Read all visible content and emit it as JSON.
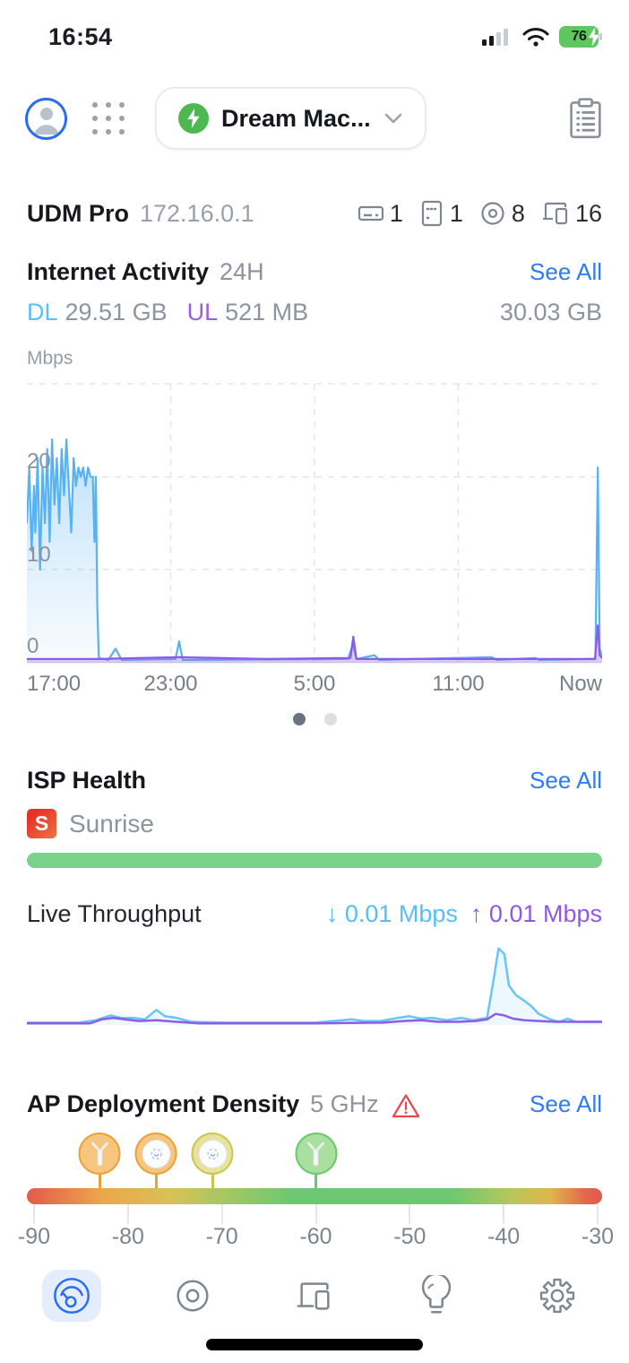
{
  "status_bar": {
    "time": "16:54",
    "battery_level": "76"
  },
  "header": {
    "site_name": "Dream Mac..."
  },
  "console": {
    "name": "UDM Pro",
    "ip": "172.16.0.1",
    "counts": [
      {
        "icon": "gateway-icon",
        "value": "1"
      },
      {
        "icon": "switch-icon",
        "value": "1"
      },
      {
        "icon": "access-point-icon",
        "value": "8"
      },
      {
        "icon": "clients-icon",
        "value": "16"
      }
    ]
  },
  "internet_activity": {
    "title": "Internet Activity",
    "period": "24H",
    "see_all": "See All",
    "dl_label": "DL",
    "dl_value": "29.51 GB",
    "ul_label": "UL",
    "ul_value": "521 MB",
    "total_value": "30.03 GB",
    "axis_unit": "Mbps",
    "y_tick_labels": [
      "20",
      "10",
      "0"
    ],
    "x_tick_labels": [
      "17:00",
      "23:00",
      "5:00",
      "11:00",
      "Now"
    ]
  },
  "isp_health": {
    "title": "ISP Health",
    "see_all": "See All",
    "provider_initial": "S",
    "provider_name": "Sunrise"
  },
  "live_throughput": {
    "title": "Live Throughput",
    "down_arrow": "↓",
    "down_value": "0.01 Mbps",
    "up_arrow": "↑",
    "up_value": "0.01 Mbps"
  },
  "ap_density": {
    "title": "AP Deployment Density",
    "band": "5 GHz",
    "see_all": "See All",
    "scale_labels": [
      "-90",
      "-80",
      "-70",
      "-60",
      "-50",
      "-40",
      "-30"
    ]
  },
  "chart_data": [
    {
      "id": "internet-activity-24h",
      "type": "area",
      "title": "Internet Activity 24H",
      "ylabel": "Mbps",
      "ylim": [
        0,
        30
      ],
      "y_ticks": [
        0,
        10,
        20
      ],
      "x_ticks": [
        "17:00",
        "23:00",
        "5:00",
        "11:00",
        "Now"
      ],
      "x_range_hours": [
        0,
        24
      ],
      "grid": "dashed",
      "legend": "none",
      "series": [
        {
          "name": "Download",
          "color": "#58b2f2",
          "points": [
            [
              0,
              15
            ],
            [
              0.1,
              21
            ],
            [
              0.2,
              12
            ],
            [
              0.3,
              19
            ],
            [
              0.35,
              14
            ],
            [
              0.45,
              22
            ],
            [
              0.55,
              10
            ],
            [
              0.65,
              21
            ],
            [
              0.75,
              15
            ],
            [
              0.85,
              23
            ],
            [
              0.95,
              13
            ],
            [
              1.05,
              24
            ],
            [
              1.15,
              17
            ],
            [
              1.25,
              22
            ],
            [
              1.35,
              15
            ],
            [
              1.45,
              23
            ],
            [
              1.55,
              18
            ],
            [
              1.65,
              24
            ],
            [
              1.75,
              19
            ],
            [
              1.85,
              14
            ],
            [
              1.95,
              22
            ],
            [
              2.05,
              19
            ],
            [
              2.15,
              21
            ],
            [
              2.25,
              20
            ],
            [
              2.35,
              21
            ],
            [
              2.45,
              19
            ],
            [
              2.55,
              21
            ],
            [
              2.65,
              20
            ],
            [
              2.75,
              20
            ],
            [
              2.82,
              13
            ],
            [
              2.88,
              20
            ],
            [
              2.94,
              6
            ],
            [
              3.0,
              0.5
            ],
            [
              3.4,
              0.3
            ],
            [
              3.7,
              1.5
            ],
            [
              3.95,
              0.3
            ],
            [
              6.2,
              0.4
            ],
            [
              6.35,
              2.3
            ],
            [
              6.5,
              0.3
            ],
            [
              13.4,
              0.4
            ],
            [
              13.6,
              2.0
            ],
            [
              13.75,
              0.4
            ],
            [
              14.5,
              0.8
            ],
            [
              14.7,
              0.3
            ],
            [
              19.4,
              0.6
            ],
            [
              19.6,
              0.3
            ],
            [
              21.2,
              0.5
            ],
            [
              21.4,
              0.3
            ],
            [
              23.5,
              0.4
            ],
            [
              23.72,
              0.4
            ],
            [
              23.82,
              21
            ],
            [
              23.9,
              1.5
            ],
            [
              24,
              0.6
            ]
          ]
        },
        {
          "name": "Upload",
          "color": "#8e59e8",
          "points": [
            [
              0,
              0.4
            ],
            [
              3,
              0.4
            ],
            [
              6.3,
              0.6
            ],
            [
              10,
              0.4
            ],
            [
              13.5,
              0.5
            ],
            [
              13.62,
              2.8
            ],
            [
              13.75,
              0.4
            ],
            [
              19.5,
              0.4
            ],
            [
              23.7,
              0.4
            ],
            [
              23.82,
              4
            ],
            [
              23.9,
              0.8
            ],
            [
              24,
              0.5
            ]
          ]
        }
      ]
    },
    {
      "id": "live-throughput",
      "type": "line",
      "ylim": [
        0,
        100
      ],
      "x_range": [
        0,
        1
      ],
      "grid": "off",
      "series": [
        {
          "name": "Download",
          "color": "#67c6f5",
          "points": [
            [
              0,
              3
            ],
            [
              0.09,
              3
            ],
            [
              0.12,
              6
            ],
            [
              0.145,
              12
            ],
            [
              0.165,
              9
            ],
            [
              0.185,
              9
            ],
            [
              0.205,
              7
            ],
            [
              0.225,
              19
            ],
            [
              0.24,
              11
            ],
            [
              0.26,
              9
            ],
            [
              0.285,
              4
            ],
            [
              0.35,
              3
            ],
            [
              0.5,
              3
            ],
            [
              0.565,
              7
            ],
            [
              0.585,
              5
            ],
            [
              0.615,
              5
            ],
            [
              0.645,
              9
            ],
            [
              0.665,
              11
            ],
            [
              0.685,
              8
            ],
            [
              0.705,
              9
            ],
            [
              0.73,
              6
            ],
            [
              0.755,
              9
            ],
            [
              0.775,
              6
            ],
            [
              0.8,
              9
            ],
            [
              0.812,
              60
            ],
            [
              0.82,
              97
            ],
            [
              0.83,
              90
            ],
            [
              0.838,
              50
            ],
            [
              0.85,
              38
            ],
            [
              0.862,
              32
            ],
            [
              0.875,
              25
            ],
            [
              0.89,
              14
            ],
            [
              0.91,
              7
            ],
            [
              0.925,
              4
            ],
            [
              0.94,
              8
            ],
            [
              0.955,
              4
            ],
            [
              1,
              4
            ]
          ]
        },
        {
          "name": "Upload",
          "color": "#8f5ce7",
          "points": [
            [
              0,
              2
            ],
            [
              0.11,
              2
            ],
            [
              0.13,
              7
            ],
            [
              0.15,
              9
            ],
            [
              0.17,
              7
            ],
            [
              0.195,
              5
            ],
            [
              0.225,
              6
            ],
            [
              0.26,
              4
            ],
            [
              0.3,
              2
            ],
            [
              0.5,
              2
            ],
            [
              0.62,
              3
            ],
            [
              0.655,
              5
            ],
            [
              0.685,
              6
            ],
            [
              0.715,
              4
            ],
            [
              0.75,
              4
            ],
            [
              0.78,
              5
            ],
            [
              0.8,
              7
            ],
            [
              0.815,
              14
            ],
            [
              0.83,
              12
            ],
            [
              0.845,
              8
            ],
            [
              0.865,
              6
            ],
            [
              0.89,
              5
            ],
            [
              0.92,
              4
            ],
            [
              0.95,
              4
            ],
            [
              1,
              4
            ]
          ]
        }
      ]
    },
    {
      "id": "ap-deployment-density",
      "type": "scatter",
      "xlim": [
        -90,
        -30
      ],
      "x_ticks": [
        -90,
        -80,
        -70,
        -60,
        -50,
        -40,
        -30
      ],
      "points": [
        {
          "rssi": -83,
          "device": "antenna-ap",
          "severity": "orange"
        },
        {
          "rssi": -77,
          "device": "disc-ap",
          "severity": "orange"
        },
        {
          "rssi": -71,
          "device": "disc-ap",
          "severity": "yellow"
        },
        {
          "rssi": -60,
          "device": "antenna-ap",
          "severity": "green"
        }
      ]
    }
  ],
  "colors": {
    "accent_blue": "#2e7bf6",
    "download_blue": "#58b2f2",
    "upload_purple": "#8e59e8",
    "health_green": "#7ad28b",
    "active_tab_blue": "#2a6cf4",
    "warning_red": "#e5484d",
    "battery_green": "#5ec75f",
    "site_status_green": "#4db852"
  }
}
